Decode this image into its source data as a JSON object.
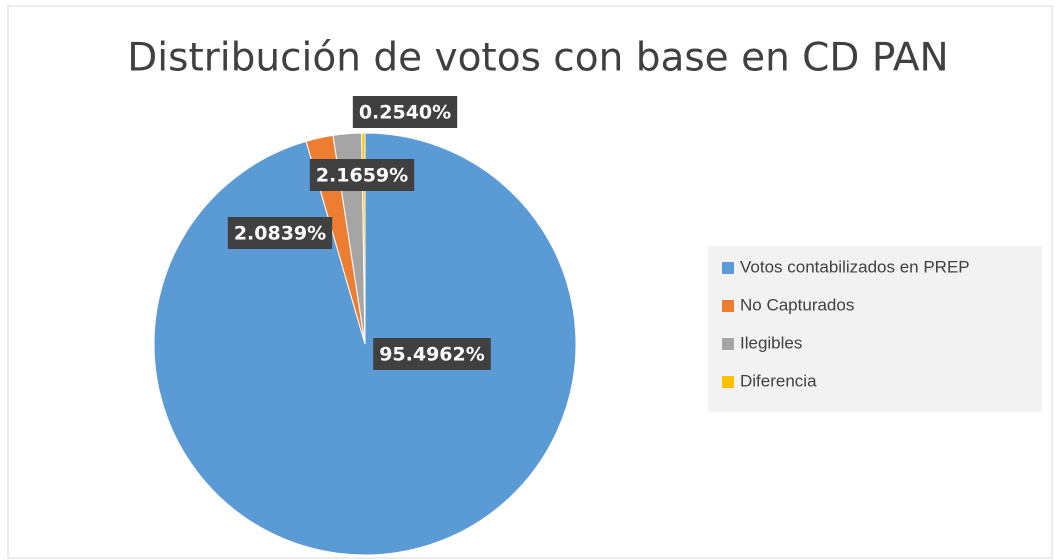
{
  "chart_data": {
    "type": "pie",
    "title": "Distribución de votos con base en CD PAN",
    "categories": [
      "Votos contabilizados en PREP",
      "No Capturados",
      "Ilegibles",
      "Diferencia"
    ],
    "values": [
      95.4962,
      2.0839,
      2.1659,
      0.254
    ],
    "value_labels": [
      "95.4962%",
      "2.0839%",
      "2.1659%",
      "0.2540%"
    ],
    "colors": [
      "#5b9bd5",
      "#ed7d31",
      "#a5a5a5",
      "#ffc000"
    ],
    "legend": "right"
  }
}
